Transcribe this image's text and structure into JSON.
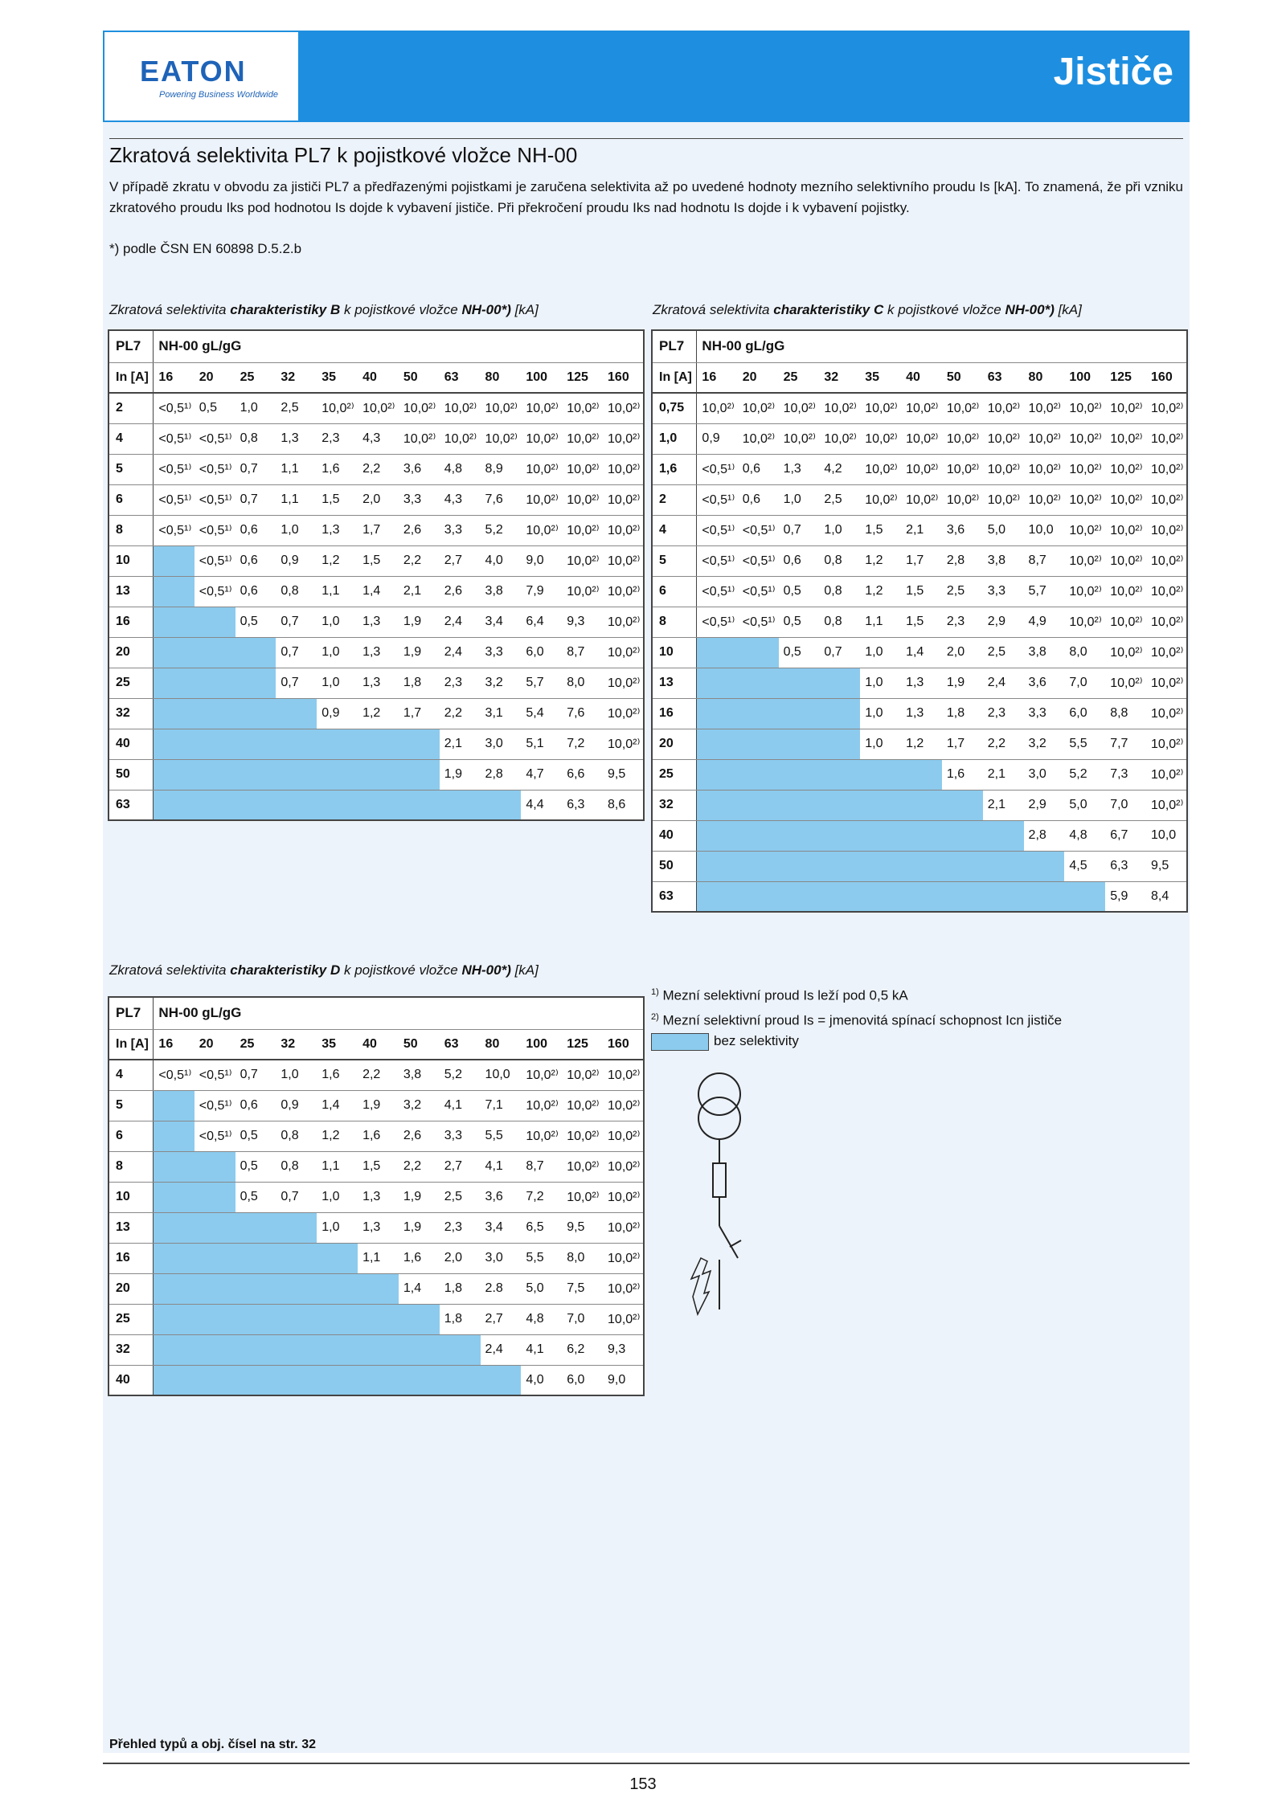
{
  "header": {
    "logo": "EATON",
    "logo_tagline": "Powering Business Worldwide",
    "section": "Jističe"
  },
  "title": "Zkratová selektivita PL7 k pojistkové vložce NH-00",
  "intro": "V případě zkratu v obvodu za jističi PL7 a předřazenými pojistkami je zaručena selektivita až po uvedené hodnoty mezního selektivního proudu Is [kA]. To znamená, že při vzniku zkratového proudu Iks pod hodnotou Is dojde k vybavení jističe. Při překročení proudu Iks nad hodnotu Is dojde i k vybavení pojistky.",
  "note": "*) podle ČSN EN 60898 D.5.2.b",
  "tables": [
    {
      "caption_pre": "Zkratová selektivita ",
      "caption_bold": "charakteristiky B",
      "caption_mid": " k pojistkové vložce ",
      "caption_bold2": "NH-00*)",
      "caption_post": " [kA]",
      "corner": "PL7",
      "fuse": "NH-00 gL/gG",
      "in_label": "In [A]",
      "cols": [
        "16",
        "20",
        "25",
        "32",
        "35",
        "40",
        "50",
        "63",
        "80",
        "100",
        "125",
        "160"
      ],
      "rows": [
        {
          "in": "2",
          "blank": 0,
          "vals": [
            "<0,5¹⁾",
            "0,5",
            "1,0",
            "2,5",
            "10,0²⁾",
            "10,0²⁾",
            "10,0²⁾",
            "10,0²⁾",
            "10,0²⁾",
            "10,0²⁾",
            "10,0²⁾",
            "10,0²⁾"
          ]
        },
        {
          "in": "4",
          "blank": 0,
          "vals": [
            "<0,5¹⁾",
            "<0,5¹⁾",
            "0,8",
            "1,3",
            "2,3",
            "4,3",
            "10,0²⁾",
            "10,0²⁾",
            "10,0²⁾",
            "10,0²⁾",
            "10,0²⁾",
            "10,0²⁾"
          ]
        },
        {
          "in": "5",
          "blank": 0,
          "vals": [
            "<0,5¹⁾",
            "<0,5¹⁾",
            "0,7",
            "1,1",
            "1,6",
            "2,2",
            "3,6",
            "4,8",
            "8,9",
            "10,0²⁾",
            "10,0²⁾",
            "10,0²⁾"
          ]
        },
        {
          "in": "6",
          "blank": 0,
          "vals": [
            "<0,5¹⁾",
            "<0,5¹⁾",
            "0,7",
            "1,1",
            "1,5",
            "2,0",
            "3,3",
            "4,3",
            "7,6",
            "10,0²⁾",
            "10,0²⁾",
            "10,0²⁾"
          ]
        },
        {
          "in": "8",
          "blank": 0,
          "vals": [
            "<0,5¹⁾",
            "<0,5¹⁾",
            "0,6",
            "1,0",
            "1,3",
            "1,7",
            "2,6",
            "3,3",
            "5,2",
            "10,0²⁾",
            "10,0²⁾",
            "10,0²⁾"
          ]
        },
        {
          "in": "10",
          "blank": 1,
          "vals": [
            "<0,5¹⁾",
            "0,6",
            "0,9",
            "1,2",
            "1,5",
            "2,2",
            "2,7",
            "4,0",
            "9,0",
            "10,0²⁾",
            "10,0²⁾"
          ]
        },
        {
          "in": "13",
          "blank": 1,
          "vals": [
            "<0,5¹⁾",
            "0,6",
            "0,8",
            "1,1",
            "1,4",
            "2,1",
            "2,6",
            "3,8",
            "7,9",
            "10,0²⁾",
            "10,0²⁾"
          ]
        },
        {
          "in": "16",
          "blank": 2,
          "vals": [
            "0,5",
            "0,7",
            "1,0",
            "1,3",
            "1,9",
            "2,4",
            "3,4",
            "6,4",
            "9,3",
            "10,0²⁾"
          ]
        },
        {
          "in": "20",
          "blank": 3,
          "vals": [
            "0,7",
            "1,0",
            "1,3",
            "1,9",
            "2,4",
            "3,3",
            "6,0",
            "8,7",
            "10,0²⁾"
          ]
        },
        {
          "in": "25",
          "blank": 3,
          "vals": [
            "0,7",
            "1,0",
            "1,3",
            "1,8",
            "2,3",
            "3,2",
            "5,7",
            "8,0",
            "10,0²⁾"
          ]
        },
        {
          "in": "32",
          "blank": 4,
          "vals": [
            "0,9",
            "1,2",
            "1,7",
            "2,2",
            "3,1",
            "5,4",
            "7,6",
            "10,0²⁾"
          ]
        },
        {
          "in": "40",
          "blank": 7,
          "vals": [
            "2,1",
            "3,0",
            "5,1",
            "7,2",
            "10,0²⁾"
          ]
        },
        {
          "in": "50",
          "blank": 7,
          "vals": [
            "1,9",
            "2,8",
            "4,7",
            "6,6",
            "9,5"
          ]
        },
        {
          "in": "63",
          "blank": 9,
          "vals": [
            "4,4",
            "6,3",
            "8,6"
          ]
        }
      ]
    },
    {
      "caption_pre": "Zkratová selektivita ",
      "caption_bold": "charakteristiky C",
      "caption_mid": " k pojistkové vložce ",
      "caption_bold2": "NH-00*)",
      "caption_post": " [kA]",
      "corner": "PL7",
      "fuse": "NH-00 gL/gG",
      "in_label": "In [A]",
      "cols": [
        "16",
        "20",
        "25",
        "32",
        "35",
        "40",
        "50",
        "63",
        "80",
        "100",
        "125",
        "160"
      ],
      "rows": [
        {
          "in": "0,75",
          "blank": 0,
          "vals": [
            "10,0²⁾",
            "10,0²⁾",
            "10,0²⁾",
            "10,0²⁾",
            "10,0²⁾",
            "10,0²⁾",
            "10,0²⁾",
            "10,0²⁾",
            "10,0²⁾",
            "10,0²⁾",
            "10,0²⁾",
            "10,0²⁾"
          ]
        },
        {
          "in": "1,0",
          "blank": 0,
          "vals": [
            "0,9",
            "10,0²⁾",
            "10,0²⁾",
            "10,0²⁾",
            "10,0²⁾",
            "10,0²⁾",
            "10,0²⁾",
            "10,0²⁾",
            "10,0²⁾",
            "10,0²⁾",
            "10,0²⁾",
            "10,0²⁾"
          ]
        },
        {
          "in": "1,6",
          "blank": 0,
          "vals": [
            "<0,5¹⁾",
            "0,6",
            "1,3",
            "4,2",
            "10,0²⁾",
            "10,0²⁾",
            "10,0²⁾",
            "10,0²⁾",
            "10,0²⁾",
            "10,0²⁾",
            "10,0²⁾",
            "10,0²⁾"
          ]
        },
        {
          "in": "2",
          "blank": 0,
          "vals": [
            "<0,5¹⁾",
            "0,6",
            "1,0",
            "2,5",
            "10,0²⁾",
            "10,0²⁾",
            "10,0²⁾",
            "10,0²⁾",
            "10,0²⁾",
            "10,0²⁾",
            "10,0²⁾",
            "10,0²⁾"
          ]
        },
        {
          "in": "4",
          "blank": 0,
          "vals": [
            "<0,5¹⁾",
            "<0,5¹⁾",
            "0,7",
            "1,0",
            "1,5",
            "2,1",
            "3,6",
            "5,0",
            "10,0",
            "10,0²⁾",
            "10,0²⁾",
            "10,0²⁾"
          ]
        },
        {
          "in": "5",
          "blank": 0,
          "vals": [
            "<0,5¹⁾",
            "<0,5¹⁾",
            "0,6",
            "0,8",
            "1,2",
            "1,7",
            "2,8",
            "3,8",
            "8,7",
            "10,0²⁾",
            "10,0²⁾",
            "10,0²⁾"
          ]
        },
        {
          "in": "6",
          "blank": 0,
          "vals": [
            "<0,5¹⁾",
            "<0,5¹⁾",
            "0,5",
            "0,8",
            "1,2",
            "1,5",
            "2,5",
            "3,3",
            "5,7",
            "10,0²⁾",
            "10,0²⁾",
            "10,0²⁾"
          ]
        },
        {
          "in": "8",
          "blank": 0,
          "vals": [
            "<0,5¹⁾",
            "<0,5¹⁾",
            "0,5",
            "0,8",
            "1,1",
            "1,5",
            "2,3",
            "2,9",
            "4,9",
            "10,0²⁾",
            "10,0²⁾",
            "10,0²⁾"
          ]
        },
        {
          "in": "10",
          "blank": 2,
          "vals": [
            "0,5",
            "0,7",
            "1,0",
            "1,4",
            "2,0",
            "2,5",
            "3,8",
            "8,0",
            "10,0²⁾",
            "10,0²⁾"
          ]
        },
        {
          "in": "13",
          "blank": 4,
          "vals": [
            "1,0",
            "1,3",
            "1,9",
            "2,4",
            "3,6",
            "7,0",
            "10,0²⁾",
            "10,0²⁾"
          ]
        },
        {
          "in": "16",
          "blank": 4,
          "vals": [
            "1,0",
            "1,3",
            "1,8",
            "2,3",
            "3,3",
            "6,0",
            "8,8",
            "10,0²⁾"
          ]
        },
        {
          "in": "20",
          "blank": 4,
          "vals": [
            "1,0",
            "1,2",
            "1,7",
            "2,2",
            "3,2",
            "5,5",
            "7,7",
            "10,0²⁾"
          ]
        },
        {
          "in": "25",
          "blank": 6,
          "vals": [
            "1,6",
            "2,1",
            "3,0",
            "5,2",
            "7,3",
            "10,0²⁾"
          ]
        },
        {
          "in": "32",
          "blank": 7,
          "vals": [
            "2,1",
            "2,9",
            "5,0",
            "7,0",
            "10,0²⁾"
          ]
        },
        {
          "in": "40",
          "blank": 8,
          "vals": [
            "2,8",
            "4,8",
            "6,7",
            "10,0"
          ]
        },
        {
          "in": "50",
          "blank": 9,
          "vals": [
            "4,5",
            "6,3",
            "9,5"
          ]
        },
        {
          "in": "63",
          "blank": 10,
          "vals": [
            "5,9",
            "8,4"
          ]
        }
      ]
    },
    {
      "caption_pre": "Zkratová selektivita ",
      "caption_bold": "charakteristiky D",
      "caption_mid": " k pojistkové vložce ",
      "caption_bold2": "NH-00*)",
      "caption_post": " [kA]",
      "corner": "PL7",
      "fuse": "NH-00 gL/gG",
      "in_label": "In [A]",
      "cols": [
        "16",
        "20",
        "25",
        "32",
        "35",
        "40",
        "50",
        "63",
        "80",
        "100",
        "125",
        "160"
      ],
      "rows": [
        {
          "in": "4",
          "blank": 0,
          "vals": [
            "<0,5¹⁾",
            "<0,5¹⁾",
            "0,7",
            "1,0",
            "1,6",
            "2,2",
            "3,8",
            "5,2",
            "10,0",
            "10,0²⁾",
            "10,0²⁾",
            "10,0²⁾"
          ]
        },
        {
          "in": "5",
          "blank": 1,
          "vals": [
            "<0,5¹⁾",
            "0,6",
            "0,9",
            "1,4",
            "1,9",
            "3,2",
            "4,1",
            "7,1",
            "10,0²⁾",
            "10,0²⁾",
            "10,0²⁾"
          ]
        },
        {
          "in": "6",
          "blank": 1,
          "vals": [
            "<0,5¹⁾",
            "0,5",
            "0,8",
            "1,2",
            "1,6",
            "2,6",
            "3,3",
            "5,5",
            "10,0²⁾",
            "10,0²⁾",
            "10,0²⁾"
          ]
        },
        {
          "in": "8",
          "blank": 2,
          "vals": [
            "0,5",
            "0,8",
            "1,1",
            "1,5",
            "2,2",
            "2,7",
            "4,1",
            "8,7",
            "10,0²⁾",
            "10,0²⁾"
          ]
        },
        {
          "in": "10",
          "blank": 2,
          "vals": [
            "0,5",
            "0,7",
            "1,0",
            "1,3",
            "1,9",
            "2,5",
            "3,6",
            "7,2",
            "10,0²⁾",
            "10,0²⁾"
          ]
        },
        {
          "in": "13",
          "blank": 4,
          "vals": [
            "1,0",
            "1,3",
            "1,9",
            "2,3",
            "3,4",
            "6,5",
            "9,5",
            "10,0²⁾"
          ]
        },
        {
          "in": "16",
          "blank": 5,
          "vals": [
            "1,1",
            "1,6",
            "2,0",
            "3,0",
            "5,5",
            "8,0",
            "10,0²⁾"
          ]
        },
        {
          "in": "20",
          "blank": 6,
          "vals": [
            "1,4",
            "1,8",
            "2.8",
            "5,0",
            "7,5",
            "10,0²⁾"
          ]
        },
        {
          "in": "25",
          "blank": 7,
          "vals": [
            "1,8",
            "2,7",
            "4,8",
            "7,0",
            "10,0²⁾"
          ]
        },
        {
          "in": "32",
          "blank": 8,
          "vals": [
            "2,4",
            "4,1",
            "6,2",
            "9,3"
          ]
        },
        {
          "in": "40",
          "blank": 9,
          "vals": [
            "4,0",
            "6,0",
            "9,0"
          ]
        }
      ]
    }
  ],
  "legend": {
    "fn1": "Mezní selektivní proud Is leží pod 0,5 kA",
    "fn2": "Mezní selektivní proud Is = jmenovitá spínací schopnost Icn jističe",
    "swatch_label": "bez selektivity"
  },
  "footer": {
    "ref": "Přehled typů a obj. čísel na str. 32",
    "page_number": "153"
  },
  "colors": {
    "brand": "#1e8fe0",
    "no_selectivity": "#8ccbee",
    "panel": "#edf3fa"
  }
}
